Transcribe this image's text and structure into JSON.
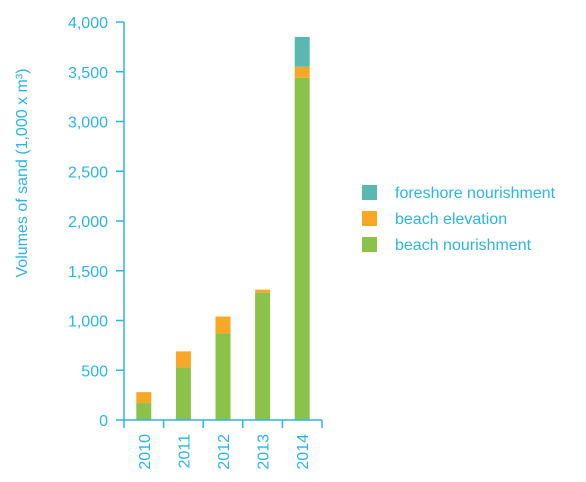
{
  "chart_data": {
    "type": "bar",
    "stacked": true,
    "title": "",
    "xlabel": "",
    "ylabel": "Volumes of sand (1,000 x m³)",
    "ylim": [
      0,
      4000
    ],
    "yticks": [
      0,
      500,
      1000,
      1500,
      2000,
      2500,
      3000,
      3500,
      4000
    ],
    "ytick_labels": [
      "0",
      "500",
      "1,000",
      "1,500",
      "2,000",
      "2,500",
      "3,000",
      "3,500",
      "4,000"
    ],
    "categories": [
      "2010",
      "2011",
      "2012",
      "2013",
      "2014"
    ],
    "grid": false,
    "legend_position": "right",
    "series": [
      {
        "name": "beach nourishment",
        "color": "#8bc34a",
        "values": [
          170,
          530,
          870,
          1280,
          3440
        ]
      },
      {
        "name": "beach elevation",
        "color": "#f9a825",
        "values": [
          110,
          160,
          170,
          30,
          110
        ]
      },
      {
        "name": "foreshore nourishment",
        "color": "#5bb8b0",
        "values": [
          0,
          0,
          0,
          0,
          300
        ]
      }
    ],
    "legend_order": [
      "foreshore nourishment",
      "beach elevation",
      "beach nourishment"
    ]
  }
}
